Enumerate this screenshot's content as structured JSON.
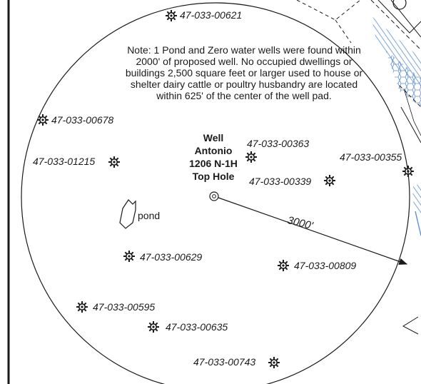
{
  "note": "Note: 1 Pond and Zero water wells were found within 2000' of proposed well. No occupied dwellings or buildings 2,500 square feet or larger used to house or shelter dairy cattle or poultry husbandry are located within 625' of the center of the well pad.",
  "well": {
    "line1": "Well",
    "line2": "Antonio",
    "line3": "1206 N-1H",
    "line4": "Top Hole"
  },
  "pond_label": "pond",
  "radius_label": "3000'",
  "well_labels": [
    "47-033-00621",
    "47-033-00678",
    "47-033-01215",
    "47-033-00363",
    "47-033-00355",
    "47-033-00339",
    "47-033-00629",
    "47-033-00809",
    "47-033-00595",
    "47-033-00635",
    "47-033-00743"
  ],
  "icons": {
    "existing_well": "gas-well-symbol-icon",
    "top_hole": "top-hole-target-icon"
  },
  "colors": {
    "ink": "#1a1a1a",
    "hatch": "#5b8fd0"
  }
}
